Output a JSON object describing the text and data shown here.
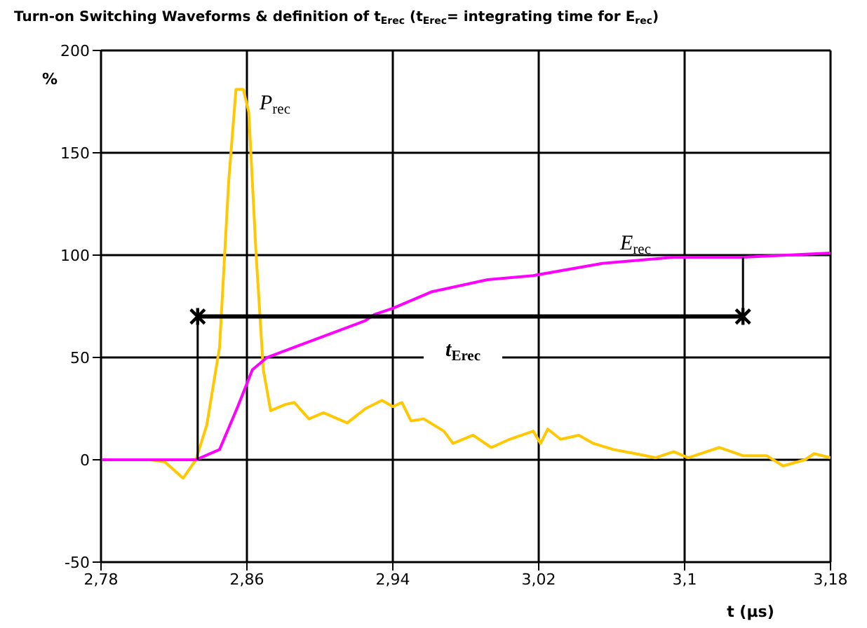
{
  "chart_data": {
    "type": "line",
    "title": "Turn-on Switching Waveforms & definition of t$_{Erec}$ (t$_{Erec}$= integrating time for E$_{rec}$)",
    "xlabel": "t (µs)",
    "ylabel": "%",
    "xlim": [
      2.78,
      3.18
    ],
    "xticks": [
      {
        "value": 2.78,
        "label": "2,78"
      },
      {
        "value": 2.86,
        "label": "2,86"
      },
      {
        "value": 2.94,
        "label": "2,94"
      },
      {
        "value": 3.02,
        "label": "3,02"
      },
      {
        "value": 3.1,
        "label": "3,1"
      },
      {
        "value": 3.18,
        "label": "3,18"
      }
    ],
    "ylim": [
      -50,
      200
    ],
    "yticks": [
      -50,
      0,
      50,
      100,
      150,
      200
    ],
    "grid": true,
    "marker": "none",
    "line_style": "solid",
    "annotations": [
      "P$_{rec}$",
      "E$_{rec}$",
      "t$_{Erec}$"
    ],
    "series": [
      {
        "color": "#ffc800",
        "x": [
          2.78,
          2.807,
          2.815,
          2.825,
          2.832,
          2.838,
          2.845,
          2.85,
          2.854,
          2.858,
          2.861,
          2.865,
          2.869,
          2.873,
          2.881,
          2.886,
          2.894,
          2.902,
          2.915,
          2.925,
          2.934,
          2.94,
          2.945,
          2.95,
          2.957,
          2.968,
          2.973,
          2.984,
          2.994,
          3.004,
          3.017,
          3.021,
          3.025,
          3.032,
          3.042,
          3.05,
          3.061,
          3.073,
          3.084,
          3.094,
          3.102,
          3.119,
          3.132,
          3.145,
          3.154,
          3.166,
          3.171,
          3.18
        ],
        "values": [
          0,
          0,
          -1,
          -9,
          0,
          17,
          55,
          136,
          181,
          181,
          170,
          101,
          44,
          24,
          27,
          28,
          20,
          23,
          18,
          25,
          29,
          26,
          28,
          19,
          20,
          14,
          8,
          12,
          6,
          10,
          14,
          8,
          15,
          10,
          12,
          8,
          5,
          3,
          1,
          4,
          1,
          6,
          2,
          2,
          -3,
          0,
          3,
          1
        ]
      },
      {
        "color": "#ff00ff",
        "x": [
          2.78,
          2.832,
          2.845,
          2.855,
          2.863,
          2.871,
          2.886,
          2.925,
          2.93,
          2.94,
          2.961,
          2.992,
          3.017,
          3.055,
          3.094,
          3.132,
          3.18
        ],
        "values": [
          0,
          0,
          5,
          26,
          44,
          50,
          55,
          68,
          71,
          74,
          82,
          88,
          90,
          96,
          99,
          99,
          101
        ]
      },
      {
        "color": "#000000",
        "x": [
          2.833,
          3.132
        ],
        "values": [
          70,
          70
        ],
        "marker": "cross"
      },
      {
        "color": "#000000",
        "x": [
          2.833,
          2.833
        ],
        "values": [
          0,
          70
        ]
      },
      {
        "color": "#000000",
        "x": [
          3.132,
          3.132
        ],
        "values": [
          70,
          99
        ]
      }
    ]
  }
}
